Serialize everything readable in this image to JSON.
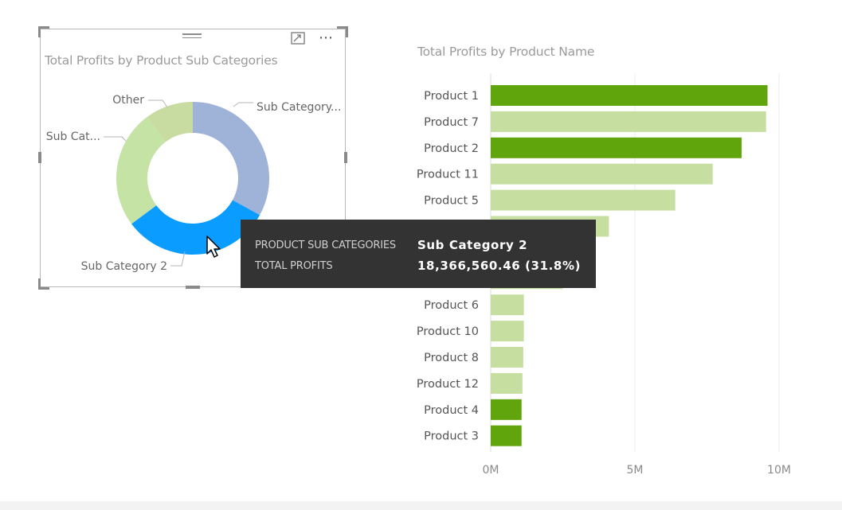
{
  "colors": {
    "dark_green": "#60a50b",
    "light_green": "#c6dfa1",
    "donut_blue_grey": "#9fb2d8",
    "donut_light_green": "#c5e3a4",
    "donut_other": "#c8dba0",
    "donut_highlight": "#0b9cff",
    "tooltip_bg": "#333333"
  },
  "donut_chart": {
    "title": "Total Profits by Product Sub Categories",
    "slice_labels": {
      "sub_category_top": "Sub Category...",
      "sub_category_left": "Sub Cat...",
      "other": "Other",
      "sub_category_2": "Sub Category 2"
    }
  },
  "tooltip": {
    "row1_key": "PRODUCT SUB CATEGORIES",
    "row1_value": "Sub Category 2",
    "row2_key": "TOTAL PROFITS",
    "row2_value": "18,366,560.46 (31.8%)"
  },
  "chart_data": [
    {
      "type": "pie",
      "title": "Total Profits by Product Sub Categories",
      "categories": [
        "Sub Category...",
        "Sub Category 2",
        "Sub Cat...",
        "Other"
      ],
      "values": [
        33,
        31.8,
        25,
        10.2
      ],
      "highlighted": "Sub Category 2",
      "legend": "none"
    },
    {
      "type": "bar",
      "orientation": "horizontal",
      "title": "Total Profits by Product Name",
      "categories": [
        "Product 1",
        "Product 7",
        "Product 2",
        "Product 11",
        "Product 5",
        "",
        "",
        "",
        "Product 6",
        "Product 10",
        "Product 8",
        "Product 12",
        "Product 4",
        "Product 3"
      ],
      "values": [
        9.6,
        9.55,
        8.7,
        7.7,
        6.4,
        4.1,
        3.2,
        2.5,
        1.15,
        1.15,
        1.13,
        1.1,
        1.07,
        1.07
      ],
      "highlight": [
        true,
        false,
        true,
        false,
        false,
        false,
        false,
        false,
        false,
        false,
        false,
        false,
        true,
        true
      ],
      "xticks": [
        "0M",
        "5M",
        "10M"
      ],
      "xlim": [
        0,
        10
      ],
      "grid": true
    }
  ]
}
